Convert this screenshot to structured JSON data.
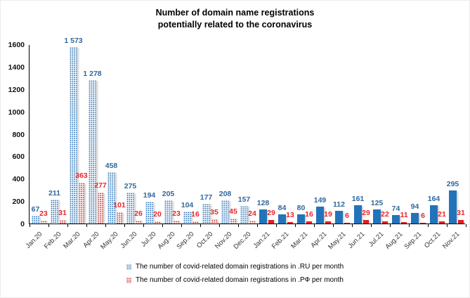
{
  "title": {
    "line1": "Number of domain name registrations",
    "line2": "potentially related to the coronavirus"
  },
  "legend": [
    {
      "label": "The number of covid-related domain registrations in .RU per month"
    },
    {
      "label": "The number of covid-related domain registrations in .РФ per month"
    }
  ],
  "colors": {
    "blue_dot": "#2E75B6",
    "blue_solid": "#2273B9",
    "blue_label": "#31679B",
    "red_dot": "#C23430",
    "red_solid": "#E01F1F",
    "red_label": "#E8252A",
    "axis": "#000000"
  },
  "chart_data": {
    "type": "bar",
    "title": "Number of domain name registrations potentially related to the coronavirus",
    "categories": [
      "Jan.20",
      "Feb.20",
      "Mar.20",
      "Apr.20",
      "May.20",
      "Jun.20",
      "Jul.20",
      "Aug.20",
      "Sep.20",
      "Oct.20",
      "Nov.20",
      "Dec.20",
      "Jan.21",
      "Feb.21",
      "Mar.21",
      "Apr.21",
      "May.21",
      "Jun.21",
      "Jul.21",
      "Aug.21",
      "Sep.21",
      "Oct.21",
      "Nov.21"
    ],
    "series": [
      {
        "name": "The number of covid-related domain registrations in .RU per month",
        "values": [
          67,
          211,
          1573,
          1278,
          458,
          275,
          194,
          205,
          104,
          177,
          208,
          157,
          128,
          84,
          80,
          149,
          112,
          161,
          125,
          74,
          94,
          164,
          295
        ]
      },
      {
        "name": "The number of covid-related domain registrations in .РФ per month",
        "values": [
          23,
          31,
          363,
          277,
          101,
          26,
          20,
          23,
          16,
          35,
          45,
          24,
          29,
          13,
          16,
          19,
          6,
          29,
          22,
          11,
          6,
          21,
          31
        ]
      }
    ],
    "dotted_count": 12,
    "ylim": [
      0,
      1600
    ],
    "yticks": [
      0,
      200,
      400,
      600,
      800,
      1000,
      1200,
      1400,
      1600
    ],
    "grid": false,
    "legend_position": "bottom",
    "xlabel": "",
    "ylabel": ""
  }
}
